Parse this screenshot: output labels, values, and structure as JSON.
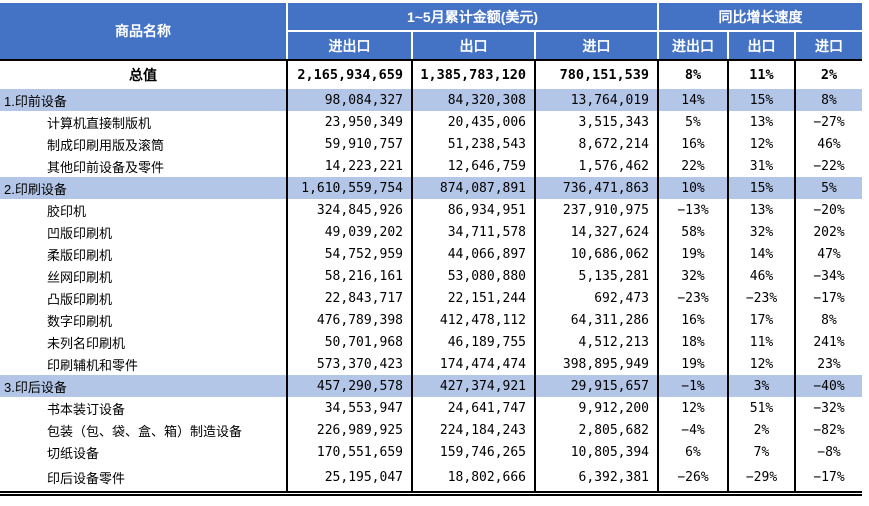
{
  "colors": {
    "header_bg": "#4472C4",
    "band_bg": "#B4C6E7",
    "header_text": "#FFFFFF",
    "grid_line": "#000000"
  },
  "chart_data": {
    "type": "table",
    "header": {
      "product": "商品名称",
      "amount_group": "1~5月累计金额(美元)",
      "growth_group": "同比增长速度",
      "sub": [
        "进出口",
        "出口",
        "进口",
        "进出口",
        "出口",
        "进口"
      ]
    },
    "rows": [
      {
        "level": "total",
        "name": "总值",
        "values": [
          "2,165,934,659",
          "1,385,783,120",
          "780,151,539",
          "8%",
          "11%",
          "2%"
        ]
      },
      {
        "level": "category",
        "name": "1.印前设备",
        "values": [
          "98,084,327",
          "84,320,308",
          "13,764,019",
          "14%",
          "15%",
          "8%"
        ]
      },
      {
        "level": "item",
        "name": "计算机直接制版机",
        "values": [
          "23,950,349",
          "20,435,006",
          "3,515,343",
          "5%",
          "13%",
          "−27%"
        ]
      },
      {
        "level": "item",
        "name": "制成印刷用版及滚筒",
        "values": [
          "59,910,757",
          "51,238,543",
          "8,672,214",
          "16%",
          "12%",
          "46%"
        ]
      },
      {
        "level": "item",
        "name": "其他印前设备及零件",
        "values": [
          "14,223,221",
          "12,646,759",
          "1,576,462",
          "22%",
          "31%",
          "−22%"
        ]
      },
      {
        "level": "category",
        "name": "2.印刷设备",
        "values": [
          "1,610,559,754",
          "874,087,891",
          "736,471,863",
          "10%",
          "15%",
          "5%"
        ]
      },
      {
        "level": "item",
        "name": "胶印机",
        "values": [
          "324,845,926",
          "86,934,951",
          "237,910,975",
          "−13%",
          "13%",
          "−20%"
        ]
      },
      {
        "level": "item",
        "name": "凹版印刷机",
        "values": [
          "49,039,202",
          "34,711,578",
          "14,327,624",
          "58%",
          "32%",
          "202%"
        ]
      },
      {
        "level": "item",
        "name": "柔版印刷机",
        "values": [
          "54,752,959",
          "44,066,897",
          "10,686,062",
          "19%",
          "14%",
          "47%"
        ]
      },
      {
        "level": "item",
        "name": "丝网印刷机",
        "values": [
          "58,216,161",
          "53,080,880",
          "5,135,281",
          "32%",
          "46%",
          "−34%"
        ]
      },
      {
        "level": "item",
        "name": "凸版印刷机",
        "values": [
          "22,843,717",
          "22,151,244",
          "692,473",
          "−23%",
          "−23%",
          "−17%"
        ]
      },
      {
        "level": "item",
        "name": "数字印刷机",
        "values": [
          "476,789,398",
          "412,478,112",
          "64,311,286",
          "16%",
          "17%",
          "8%"
        ]
      },
      {
        "level": "item",
        "name": "未列名印刷机",
        "values": [
          "50,701,968",
          "46,189,755",
          "4,512,213",
          "18%",
          "11%",
          "241%"
        ]
      },
      {
        "level": "item",
        "name": "印刷辅机和零件",
        "values": [
          "573,370,423",
          "174,474,474",
          "398,895,949",
          "19%",
          "12%",
          "23%"
        ]
      },
      {
        "level": "category",
        "name": "3.印后设备",
        "values": [
          "457,290,578",
          "427,374,921",
          "29,915,657",
          "−1%",
          "3%",
          "−40%"
        ]
      },
      {
        "level": "item",
        "name": "书本装订设备",
        "values": [
          "34,553,947",
          "24,641,747",
          "9,912,200",
          "12%",
          "51%",
          "−32%"
        ]
      },
      {
        "level": "item",
        "name": "包装（包、袋、盒、箱）制造设备",
        "values": [
          "226,989,925",
          "224,184,243",
          "2,805,682",
          "−4%",
          "2%",
          "−82%"
        ]
      },
      {
        "level": "item",
        "name": "切纸设备",
        "values": [
          "170,551,659",
          "159,746,265",
          "10,805,394",
          "6%",
          "7%",
          "−8%"
        ]
      },
      {
        "level": "item",
        "name": "印后设备零件",
        "values": [
          "25,195,047",
          "18,802,666",
          "6,392,381",
          "−26%",
          "−29%",
          "−17%"
        ]
      }
    ]
  }
}
